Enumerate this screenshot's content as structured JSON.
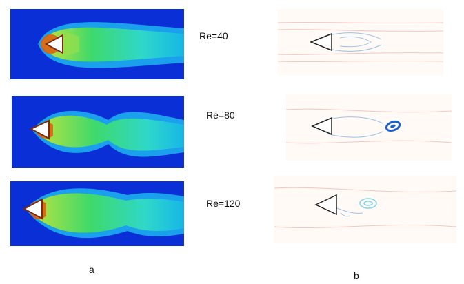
{
  "rows": [
    {
      "re_label": "Re=40"
    },
    {
      "re_label": "Re=80"
    },
    {
      "re_label": "Re=120"
    }
  ],
  "column_labels": {
    "left": "a",
    "right": "b"
  },
  "colors": {
    "field_background": "#0a2fd6",
    "jet_outer": "#16b7e6",
    "jet_mid": "#2fd8c8",
    "jet_core": "#3fd96a",
    "hot_core": "#f2d22a",
    "hot_edge": "#e05a12",
    "vorticity_positive": "#f4b8b8",
    "vorticity_negative": "#1e5fd0"
  }
}
